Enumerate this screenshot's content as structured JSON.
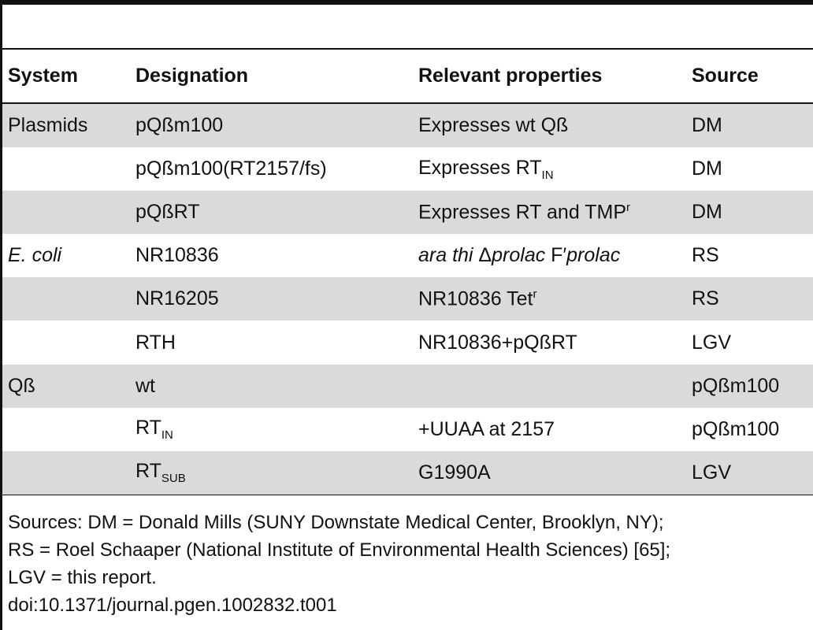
{
  "table": {
    "header": [
      "System",
      "Designation",
      "Relevant properties",
      "Source"
    ],
    "rows": [
      [
        [
          "Plasmids"
        ],
        [
          "pQßm100"
        ],
        [
          "Expresses wt Qß"
        ],
        [
          "DM"
        ]
      ],
      [
        null,
        [
          "pQßm100(RT2157/fs)"
        ],
        [
          "Expresses RT",
          {
            "sub": "IN"
          }
        ],
        [
          "DM"
        ]
      ],
      [
        null,
        [
          "pQßRT"
        ],
        [
          "Expresses RT and TMP",
          {
            "sup": "r"
          }
        ],
        [
          "DM"
        ]
      ],
      [
        [
          {
            "i": "E. coli"
          }
        ],
        [
          "NR10836"
        ],
        [
          {
            "i": "ara thi"
          },
          " Δ",
          {
            "i": "prolac"
          },
          " F′",
          {
            "i": "prolac"
          }
        ],
        [
          "RS"
        ]
      ],
      [
        null,
        [
          "NR16205"
        ],
        [
          "NR10836 Tet",
          {
            "sup": "r"
          }
        ],
        [
          "RS"
        ]
      ],
      [
        null,
        [
          "RTH"
        ],
        [
          "NR10836+pQßRT"
        ],
        [
          "LGV"
        ]
      ],
      [
        [
          "Qß"
        ],
        [
          "wt"
        ],
        null,
        [
          "pQßm100"
        ]
      ],
      [
        null,
        [
          "RT",
          {
            "sub": "IN"
          }
        ],
        [
          "+UUAA at 2157"
        ],
        [
          "pQßm100"
        ]
      ],
      [
        null,
        [
          "RT",
          {
            "sub": "SUB"
          }
        ],
        [
          "G1990A"
        ],
        [
          "LGV"
        ]
      ]
    ]
  },
  "footer": {
    "lines": [
      "Sources: DM = Donald Mills (SUNY Downstate Medical Center, Brooklyn, NY);",
      "RS = Roel Schaaper (National Institute of Environmental Health Sciences) [65];",
      "LGV = this report."
    ],
    "doi": "doi:10.1371/journal.pgen.1002832.t001"
  }
}
